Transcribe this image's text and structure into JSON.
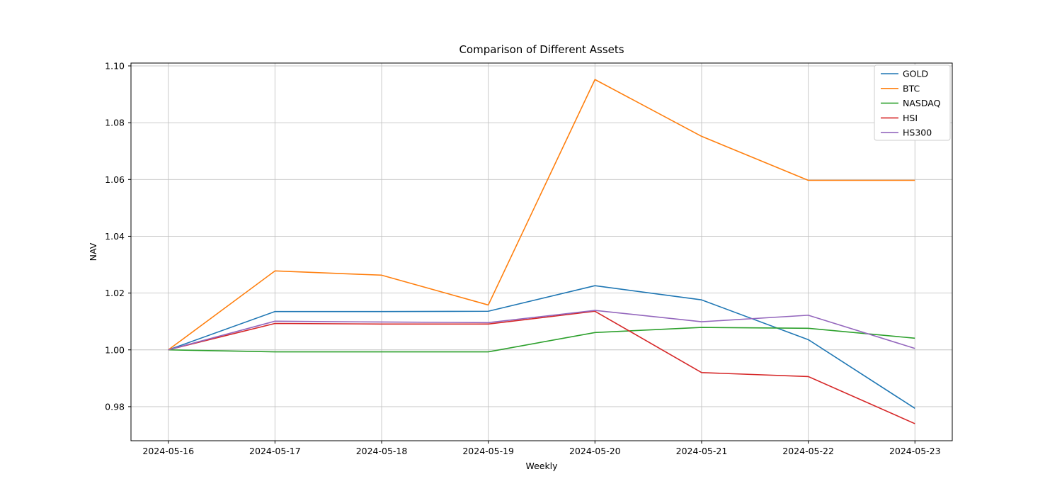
{
  "chart_data": {
    "type": "line",
    "title": "Comparison of Different Assets",
    "xlabel": "Weekly",
    "ylabel": "NAV",
    "x": [
      "2024-05-16",
      "2024-05-17",
      "2024-05-18",
      "2024-05-19",
      "2024-05-20",
      "2024-05-21",
      "2024-05-22",
      "2024-05-23"
    ],
    "series": [
      {
        "name": "GOLD",
        "color": "#1f77b4",
        "values": [
          1.0,
          1.0135,
          1.0135,
          1.0136,
          1.0226,
          1.0176,
          1.0036,
          0.9794
        ]
      },
      {
        "name": "BTC",
        "color": "#ff7f0e",
        "values": [
          1.0,
          1.0278,
          1.0263,
          1.0158,
          1.0952,
          1.0752,
          1.0597,
          1.0597
        ]
      },
      {
        "name": "NASDAQ",
        "color": "#2ca02c",
        "values": [
          1.0,
          0.9993,
          0.9993,
          0.9993,
          1.0061,
          1.0079,
          1.0076,
          1.0041
        ]
      },
      {
        "name": "HSI",
        "color": "#d62728",
        "values": [
          1.0,
          1.0093,
          1.0091,
          1.0091,
          1.0136,
          0.992,
          0.9906,
          0.974
        ]
      },
      {
        "name": "HS300",
        "color": "#9467bd",
        "values": [
          1.0,
          1.0101,
          1.0098,
          1.0096,
          1.0139,
          1.0099,
          1.0122,
          1.0005
        ]
      }
    ],
    "ylim": [
      0.968,
      1.101
    ],
    "yticks": [
      0.98,
      1.0,
      1.02,
      1.04,
      1.06,
      1.08,
      1.1
    ],
    "grid": true,
    "legend_position": "upper right",
    "axis_color": "#000000",
    "grid_color": "#c4c4c4",
    "background": "#ffffff"
  }
}
